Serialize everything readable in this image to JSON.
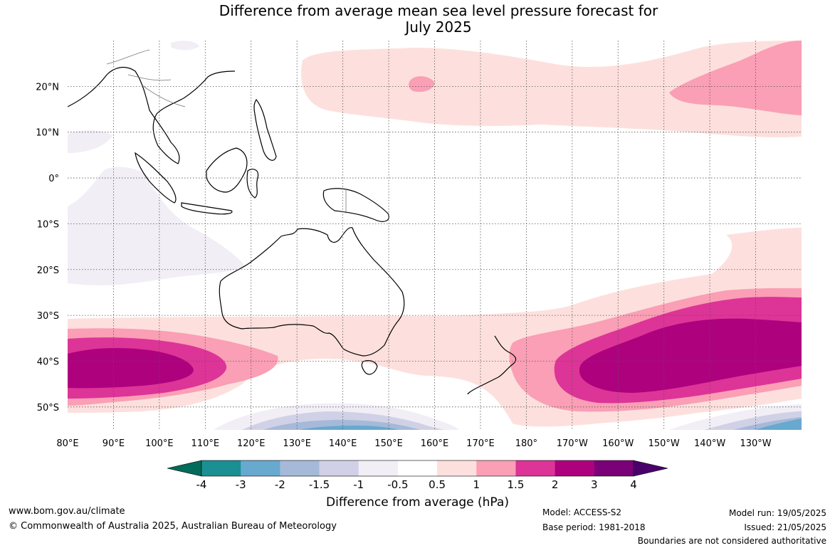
{
  "title": {
    "line1": "Difference from average mean sea level pressure forecast for",
    "line2": "July 2025"
  },
  "map": {
    "lon_range": [
      80,
      240
    ],
    "lat_range": [
      -55,
      30
    ],
    "x_tick_labels": [
      "80°E",
      "90°E",
      "100°E",
      "110°E",
      "120°E",
      "130°E",
      "140°E",
      "150°E",
      "160°E",
      "170°E",
      "180°",
      "170°W",
      "160°W",
      "150°W",
      "140°W",
      "130°W"
    ],
    "y_tick_labels": [
      "20°N",
      "10°N",
      "0°",
      "10°S",
      "20°S",
      "30°S",
      "40°S",
      "50°S"
    ],
    "y_tick_values": [
      20,
      10,
      0,
      -10,
      -20,
      -30,
      -40,
      -50
    ]
  },
  "colorbar": {
    "label": "Difference from average (hPa)",
    "tick_labels": [
      "-4",
      "-3",
      "-2",
      "-1.5",
      "-1",
      "-0.5",
      "0.5",
      "1",
      "1.5",
      "2",
      "3",
      "4"
    ],
    "colors": [
      "#1a9093",
      "#67a9cf",
      "#a6b9d9",
      "#d0d1e6",
      "#f1eef6",
      "#ffffff",
      "#fde0dd",
      "#fa9fb5",
      "#dd3497",
      "#ae017e",
      "#7a0177"
    ],
    "under_color": "#016c59",
    "over_color": "#49006a"
  },
  "footer": {
    "website": "www.bom.gov.au/climate",
    "copyright": "© Commonwealth of Australia 2025, Australian Bureau of Meteorology",
    "model": "Model: ACCESS-S2",
    "base_period": "Base period: 1981-2018",
    "model_run": "Model run: 19/05/2025",
    "issued": "Issued: 21/05/2025",
    "disclaimer": "Boundaries are not considered authoritative"
  }
}
